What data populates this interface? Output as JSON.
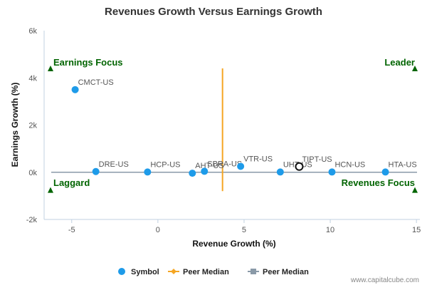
{
  "chart_data": {
    "type": "scatter",
    "title": "Revenues Growth Versus Earnings Growth",
    "xlabel": "Revenue Growth (%)",
    "ylabel": "Earnings Growth (%)",
    "xlim": [
      -6.6,
      15.2
    ],
    "ylim": [
      -2000,
      6000
    ],
    "x_ticks": [
      {
        "value": -5,
        "label": "-5"
      },
      {
        "value": 0,
        "label": "0"
      },
      {
        "value": 5,
        "label": "5"
      },
      {
        "value": 10,
        "label": "10"
      },
      {
        "value": 15,
        "label": "15"
      }
    ],
    "y_ticks": [
      {
        "value": -2000,
        "label": "-2k"
      },
      {
        "value": 0,
        "label": "0k"
      },
      {
        "value": 2000,
        "label": "2k"
      },
      {
        "value": 4000,
        "label": "4k"
      },
      {
        "value": 6000,
        "label": "6k"
      }
    ],
    "grid": false,
    "series": [
      {
        "name": "Symbol",
        "color": "#1e9be9",
        "points": [
          {
            "label": "CMCT-US",
            "x": -4.8,
            "y": 3500
          },
          {
            "label": "DRE-US",
            "x": -3.6,
            "y": 30
          },
          {
            "label": "HCP-US",
            "x": -0.6,
            "y": 10
          },
          {
            "label": "AHT-US",
            "x": 2.0,
            "y": -40
          },
          {
            "label": "SBRA-US",
            "x": 2.7,
            "y": 40
          },
          {
            "label": "VTR-US",
            "x": 4.8,
            "y": 250
          },
          {
            "label": "UHT-US",
            "x": 7.1,
            "y": 10
          },
          {
            "label": "HCN-US",
            "x": 10.1,
            "y": 10
          },
          {
            "label": "HTA-US",
            "x": 13.2,
            "y": 10
          }
        ]
      }
    ],
    "highlight": {
      "label": "TIPT-US",
      "x": 8.2,
      "y": 240
    },
    "peer_median_revenue": {
      "name": "Peer Median",
      "x": 3.75,
      "color": "#f5a623"
    },
    "peer_median_earnings": {
      "name": "Peer Median",
      "y": 0,
      "color": "#8a9aa8"
    },
    "quadrants": {
      "top_left": "Earnings Focus",
      "top_right": "Leader",
      "bottom_left": "Laggard",
      "bottom_right": "Revenues Focus"
    },
    "quadrant_marker_color": "#006400",
    "legend": {
      "placement": "bottom",
      "items": [
        {
          "name": "Symbol",
          "color": "#1e9be9",
          "marker": "circle"
        },
        {
          "name": "Peer Median",
          "color": "#f5a623",
          "marker": "diamond-line"
        },
        {
          "name": "Peer Median",
          "color": "#8a9aa8",
          "marker": "square-line"
        }
      ]
    },
    "credit": "www.capitalcube.com"
  }
}
